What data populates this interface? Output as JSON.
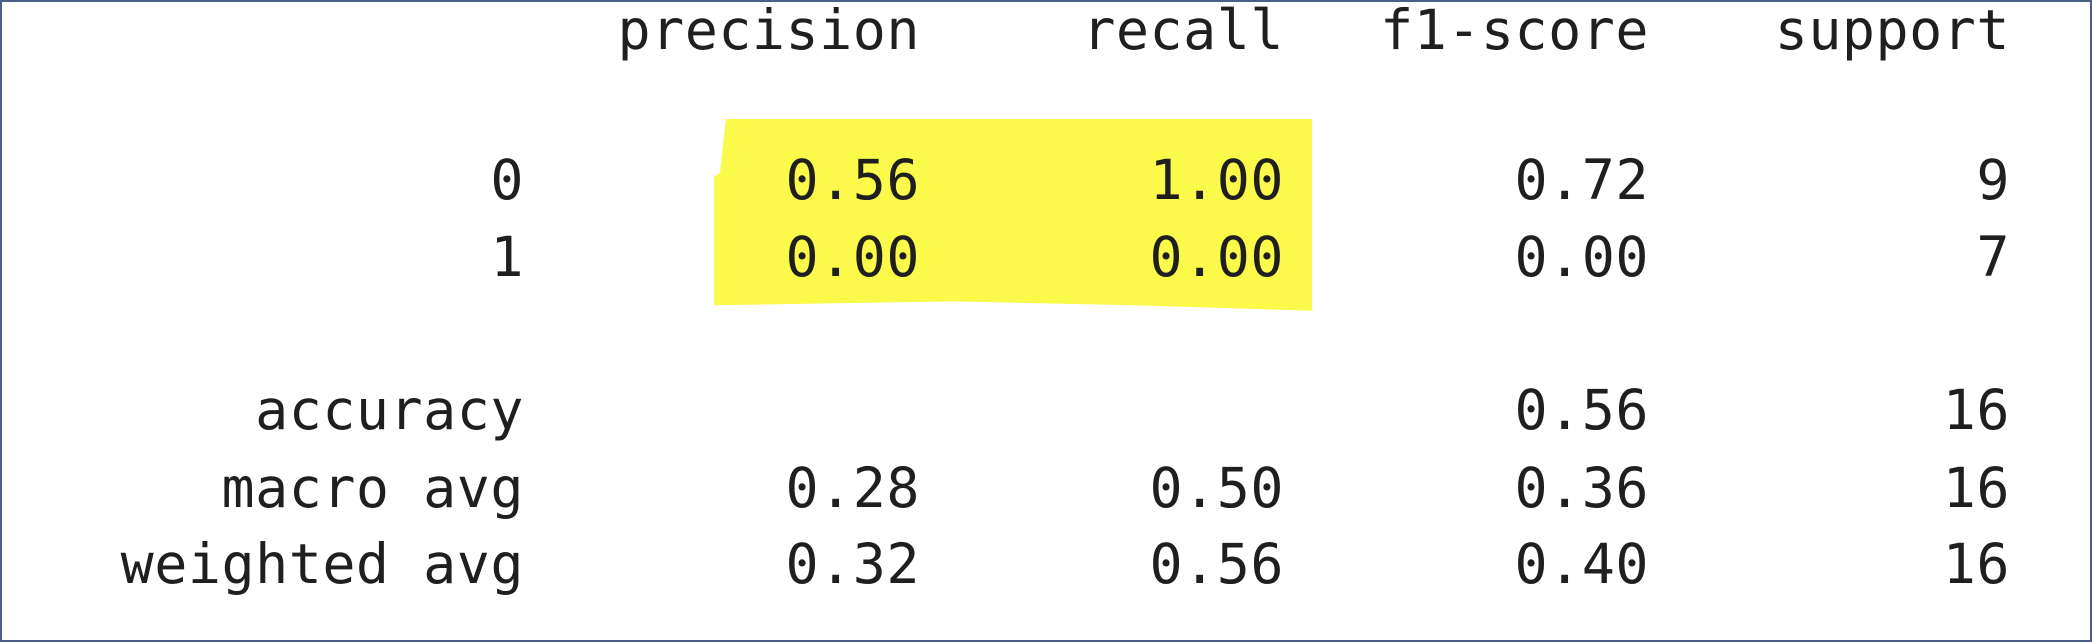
{
  "header": {
    "precision": "precision",
    "recall": "recall",
    "f1_score": "f1-score",
    "support": "support"
  },
  "class_rows": [
    {
      "label": "0",
      "precision": "0.56",
      "recall": "1.00",
      "f1_score": "0.72",
      "support": "9"
    },
    {
      "label": "1",
      "precision": "0.00",
      "recall": "0.00",
      "f1_score": "0.00",
      "support": "7"
    }
  ],
  "summary_rows": [
    {
      "label": "accuracy",
      "precision": "",
      "recall": "",
      "f1_score": "0.56",
      "support": "16"
    },
    {
      "label": "macro avg",
      "precision": "0.28",
      "recall": "0.50",
      "f1_score": "0.36",
      "support": "16"
    },
    {
      "label": "weighted avg",
      "precision": "0.32",
      "recall": "0.56",
      "f1_score": "0.40",
      "support": "16"
    }
  ],
  "colors": {
    "highlight": "#fbf94a",
    "text": "#1f1f1f",
    "border": "#4a5f86"
  }
}
